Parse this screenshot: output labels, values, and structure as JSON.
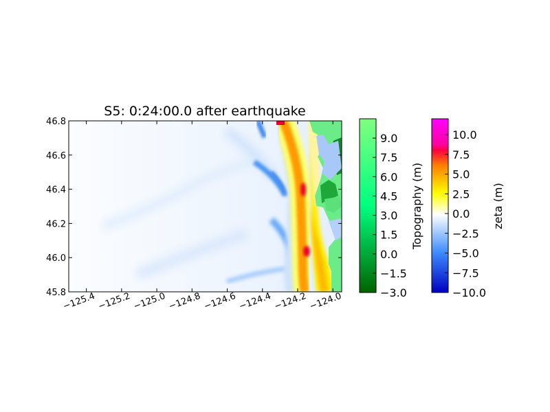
{
  "chart_data": {
    "type": "heatmap",
    "title": "S5: 0:24:00.0 after earthquake",
    "xlim": [
      -125.5,
      -123.95
    ],
    "ylim": [
      45.8,
      46.8
    ],
    "x_ticks": [
      -125.4,
      -125.2,
      -125.0,
      -124.8,
      -124.6,
      -124.4,
      -124.2,
      -124.0
    ],
    "x_tick_labels": [
      "−125.4",
      "−125.2",
      "−125.0",
      "−124.8",
      "−124.6",
      "−124.4",
      "−124.2",
      "−124.0"
    ],
    "y_ticks": [
      45.8,
      46.0,
      46.2,
      46.4,
      46.6,
      46.8
    ],
    "y_tick_labels": [
      "45.8",
      "46.0",
      "46.2",
      "46.4",
      "46.6",
      "46.8"
    ],
    "colorbars": [
      {
        "label": "Topography (m)",
        "range": [
          -3.0,
          10.5
        ],
        "ticks": [
          -3.0,
          -1.5,
          0.0,
          1.5,
          3.0,
          4.5,
          6.0,
          7.5,
          9.0
        ],
        "tick_labels": [
          "−3.0",
          "−1.5",
          "0.0",
          "1.5",
          "3.0",
          "4.5",
          "6.0",
          "7.5",
          "9.0"
        ],
        "colors": [
          "#006400",
          "#00ff80",
          "#80ff80"
        ]
      },
      {
        "label": "zeta (m)",
        "range": [
          -10.0,
          12.0
        ],
        "ticks": [
          -10.0,
          -7.5,
          -5.0,
          -2.5,
          0.0,
          2.5,
          5.0,
          7.5,
          10.0
        ],
        "tick_labels": [
          "−10.0",
          "−7.5",
          "−5.0",
          "−2.5",
          "0.0",
          "2.5",
          "5.0",
          "7.5",
          "10.0"
        ],
        "colors": [
          "#0000c0",
          "#3c8cff",
          "#ffffff",
          "#ffff00",
          "#ff8000",
          "#ff0000",
          "#ff00ff"
        ]
      }
    ]
  }
}
